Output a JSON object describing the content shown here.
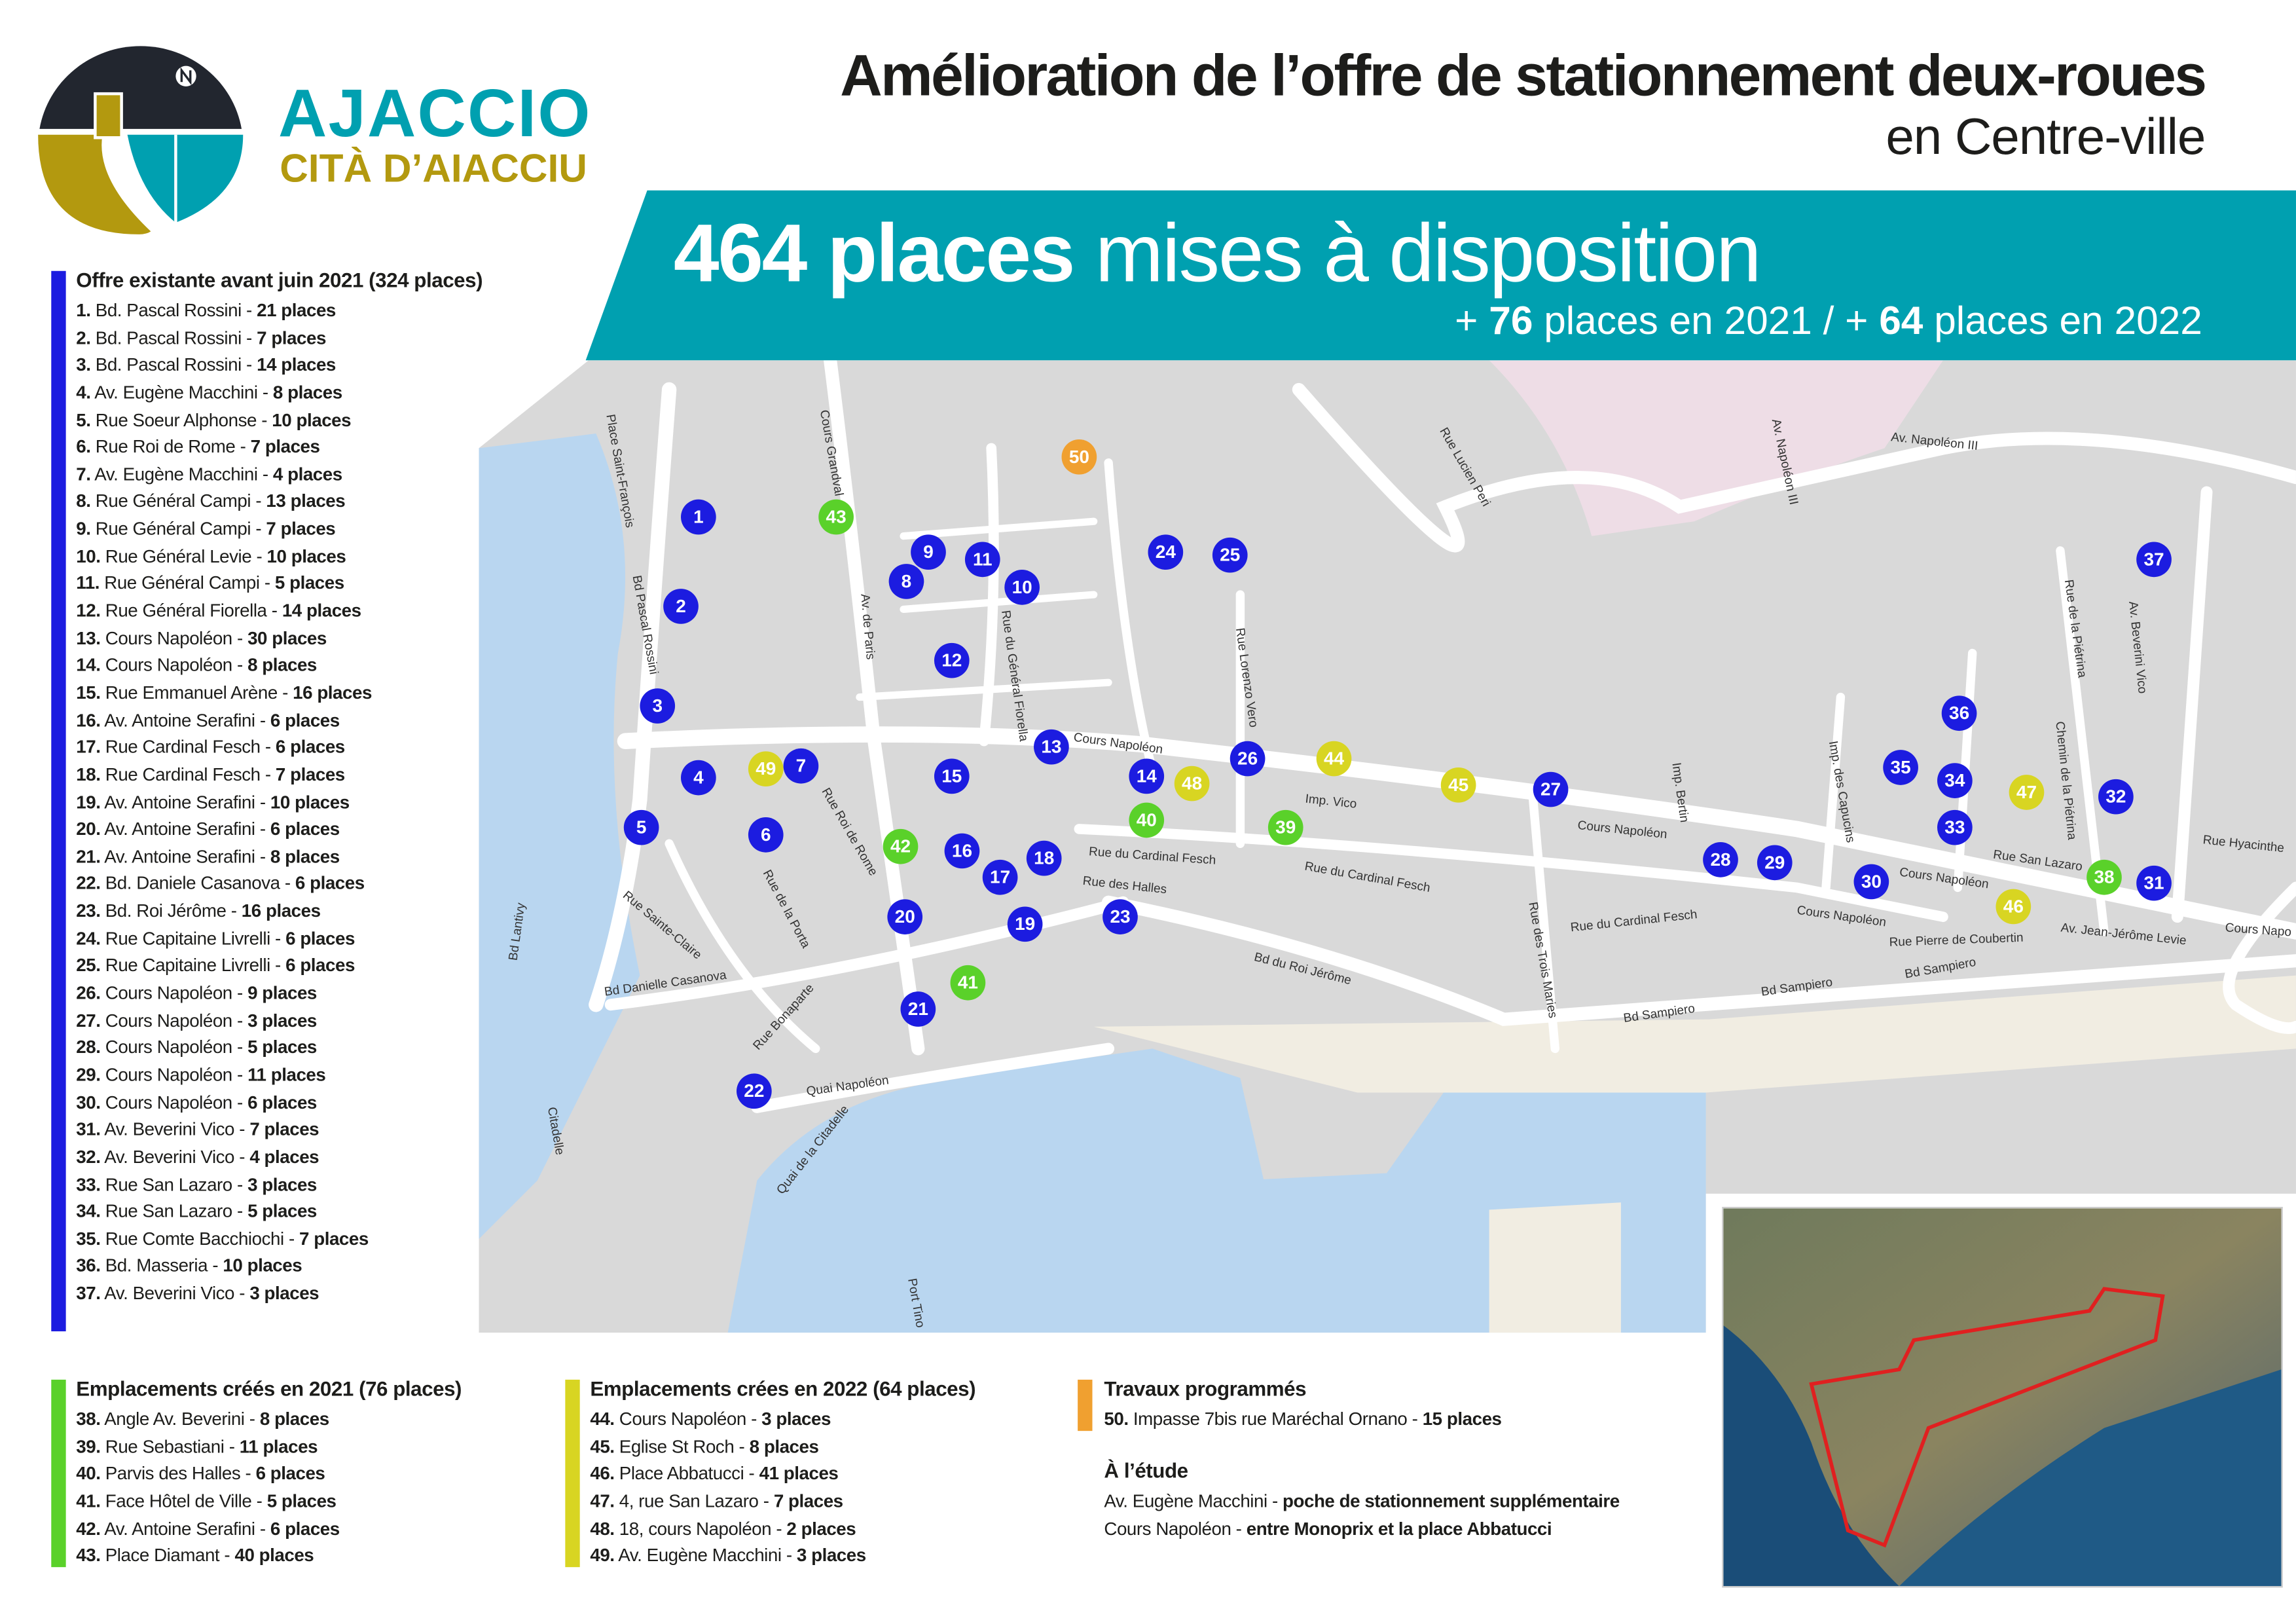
{
  "colors": {
    "teal": "#00a0b0",
    "gold": "#b3990f",
    "navy": "#22262f",
    "existing": "#1c1ce0",
    "created_2021": "#5ad12a",
    "created_2022": "#d8d522",
    "planned": "#f0a030",
    "sea": "#b9d6f0",
    "map_bg": "#d9d9d9",
    "road": "#ffffff"
  },
  "logo": {
    "name": "AJACCIO",
    "subtitle": "CITÀ D’AIACCIU",
    "icon": "ajaccio-coat-of-arms-icon"
  },
  "header": {
    "title_line1": "Amélioration de l’offre de stationnement deux-roues",
    "title_line2": "en Centre-ville"
  },
  "banner": {
    "big_bold": "464 places",
    "big_rest": " mises à disposition",
    "sub_pre1": "+ ",
    "sub_num1": "76",
    "sub_mid": " places en 2021 / + ",
    "sub_num2": "64",
    "sub_post": " places en 2022"
  },
  "existing": {
    "title": "Offre existante avant juin 2021 (324 places)",
    "items": [
      {
        "num": "1.",
        "street": "Bd. Pascal Rossini",
        "places": "21 places"
      },
      {
        "num": "2.",
        "street": "Bd. Pascal Rossini",
        "places": "7 places"
      },
      {
        "num": "3.",
        "street": "Bd. Pascal Rossini",
        "places": "14 places"
      },
      {
        "num": "4.",
        "street": "Av. Eugène Macchini",
        "places": "8 places"
      },
      {
        "num": "5.",
        "street": "Rue Soeur Alphonse",
        "places": "10 places"
      },
      {
        "num": "6.",
        "street": "Rue Roi de Rome",
        "places": "7 places"
      },
      {
        "num": "7.",
        "street": "Av. Eugène Macchini",
        "places": "4 places"
      },
      {
        "num": "8.",
        "street": "Rue Général Campi",
        "places": "13 places"
      },
      {
        "num": "9.",
        "street": "Rue Général Campi",
        "places": "7 places"
      },
      {
        "num": "10.",
        "street": "Rue Général Levie",
        "places": "10 places"
      },
      {
        "num": "11.",
        "street": "Rue Général Campi",
        "places": "5 places"
      },
      {
        "num": "12.",
        "street": "Rue Général Fiorella",
        "places": "14 places"
      },
      {
        "num": "13.",
        "street": "Cours Napoléon",
        "places": "30 places"
      },
      {
        "num": "14.",
        "street": "Cours Napoléon",
        "places": "8 places"
      },
      {
        "num": "15.",
        "street": "Rue Emmanuel Arène",
        "places": "16 places"
      },
      {
        "num": "16.",
        "street": "Av. Antoine Serafini",
        "places": "6 places"
      },
      {
        "num": "17.",
        "street": "Rue Cardinal Fesch",
        "places": "6 places"
      },
      {
        "num": "18.",
        "street": "Rue Cardinal Fesch",
        "places": "7 places"
      },
      {
        "num": "19.",
        "street": "Av. Antoine Serafini",
        "places": "10 places"
      },
      {
        "num": "20.",
        "street": "Av. Antoine Serafini",
        "places": "6 places"
      },
      {
        "num": "21.",
        "street": "Av. Antoine Serafini",
        "places": "8 places"
      },
      {
        "num": "22.",
        "street": "Bd. Daniele Casanova",
        "places": "6 places"
      },
      {
        "num": "23.",
        "street": "Bd. Roi Jérôme",
        "places": "16 places"
      },
      {
        "num": "24.",
        "street": "Rue Capitaine Livrelli",
        "places": "6 places"
      },
      {
        "num": "25.",
        "street": "Rue Capitaine Livrelli",
        "places": "6 places"
      },
      {
        "num": "26.",
        "street": "Cours Napoléon",
        "places": "9 places"
      },
      {
        "num": "27.",
        "street": "Cours Napoléon",
        "places": "3 places"
      },
      {
        "num": "28.",
        "street": "Cours Napoléon",
        "places": "5 places"
      },
      {
        "num": "29.",
        "street": "Cours Napoléon",
        "places": "11 places"
      },
      {
        "num": "30.",
        "street": "Cours Napoléon",
        "places": "6 places"
      },
      {
        "num": "31.",
        "street": "Av. Beverini Vico",
        "places": "7 places"
      },
      {
        "num": "32.",
        "street": "Av. Beverini Vico",
        "places": "4 places"
      },
      {
        "num": "33.",
        "street": "Rue San Lazaro",
        "places": "3 places"
      },
      {
        "num": "34.",
        "street": "Rue San Lazaro",
        "places": "5 places"
      },
      {
        "num": "35.",
        "street": "Rue Comte Bacchiochi",
        "places": "7 places"
      },
      {
        "num": "36.",
        "street": "Bd. Masseria",
        "places": "10 places"
      },
      {
        "num": "37.",
        "street": "Av. Beverini Vico",
        "places": "3 places"
      }
    ]
  },
  "created_2021": {
    "title": "Emplacements créés en 2021 (76 places)",
    "items": [
      {
        "num": "38.",
        "street": "Angle Av. Beverini",
        "places": "8 places"
      },
      {
        "num": "39.",
        "street": "Rue Sebastiani",
        "places": "11 places"
      },
      {
        "num": "40.",
        "street": "Parvis des Halles",
        "places": "6 places"
      },
      {
        "num": "41.",
        "street": "Face Hôtel de Ville",
        "places": "5 places"
      },
      {
        "num": "42.",
        "street": "Av. Antoine Serafini",
        "places": "6 places"
      },
      {
        "num": "43.",
        "street": "Place Diamant",
        "places": "40 places"
      }
    ]
  },
  "created_2022": {
    "title": "Emplacements crées en 2022 (64 places)",
    "items": [
      {
        "num": "44.",
        "street": "Cours Napoléon",
        "places": "3 places"
      },
      {
        "num": "45.",
        "street": "Eglise St Roch",
        "places": "8 places"
      },
      {
        "num": "46.",
        "street": "Place Abbatucci",
        "places": "41 places"
      },
      {
        "num": "47.",
        "street": "4, rue San Lazaro",
        "places": "7 places"
      },
      {
        "num": "48.",
        "street": "18, cours Napoléon",
        "places": "2 places"
      },
      {
        "num": "49.",
        "street": "Av. Eugène Macchini",
        "places": "3 places"
      }
    ]
  },
  "planned": {
    "title": "Travaux programmés",
    "items": [
      {
        "num": "50.",
        "street": "Impasse 7bis rue Maréchal Ornano",
        "places": "15 places"
      }
    ]
  },
  "study": {
    "title": "À l’étude",
    "items": [
      {
        "num": "",
        "street": "Av. Eugène Macchini",
        "places": "poche de stationnement supplémentaire"
      },
      {
        "num": "",
        "street": "Cours Napoléon",
        "places": "entre Monoprix et la place Abbatucci"
      }
    ]
  },
  "map": {
    "markers": [
      {
        "n": "1",
        "cat": "existing"
      },
      {
        "n": "2",
        "cat": "existing"
      },
      {
        "n": "3",
        "cat": "existing"
      },
      {
        "n": "4",
        "cat": "existing"
      },
      {
        "n": "5",
        "cat": "existing"
      },
      {
        "n": "6",
        "cat": "existing"
      },
      {
        "n": "7",
        "cat": "existing"
      },
      {
        "n": "8",
        "cat": "existing"
      },
      {
        "n": "9",
        "cat": "existing"
      },
      {
        "n": "10",
        "cat": "existing"
      },
      {
        "n": "11",
        "cat": "existing"
      },
      {
        "n": "12",
        "cat": "existing"
      },
      {
        "n": "13",
        "cat": "existing"
      },
      {
        "n": "14",
        "cat": "existing"
      },
      {
        "n": "15",
        "cat": "existing"
      },
      {
        "n": "16",
        "cat": "existing"
      },
      {
        "n": "17",
        "cat": "existing"
      },
      {
        "n": "18",
        "cat": "existing"
      },
      {
        "n": "19",
        "cat": "existing"
      },
      {
        "n": "20",
        "cat": "existing"
      },
      {
        "n": "21",
        "cat": "existing"
      },
      {
        "n": "22",
        "cat": "existing"
      },
      {
        "n": "23",
        "cat": "existing"
      },
      {
        "n": "24",
        "cat": "existing"
      },
      {
        "n": "25",
        "cat": "existing"
      },
      {
        "n": "26",
        "cat": "existing"
      },
      {
        "n": "27",
        "cat": "existing"
      },
      {
        "n": "28",
        "cat": "existing"
      },
      {
        "n": "29",
        "cat": "existing"
      },
      {
        "n": "30",
        "cat": "existing"
      },
      {
        "n": "31",
        "cat": "existing"
      },
      {
        "n": "32",
        "cat": "existing"
      },
      {
        "n": "33",
        "cat": "existing"
      },
      {
        "n": "34",
        "cat": "existing"
      },
      {
        "n": "35",
        "cat": "existing"
      },
      {
        "n": "36",
        "cat": "existing"
      },
      {
        "n": "37",
        "cat": "existing"
      },
      {
        "n": "38",
        "cat": "created_2021"
      },
      {
        "n": "39",
        "cat": "created_2021"
      },
      {
        "n": "40",
        "cat": "created_2021"
      },
      {
        "n": "41",
        "cat": "created_2021"
      },
      {
        "n": "42",
        "cat": "created_2021"
      },
      {
        "n": "43",
        "cat": "created_2021"
      },
      {
        "n": "44",
        "cat": "created_2022"
      },
      {
        "n": "45",
        "cat": "created_2022"
      },
      {
        "n": "46",
        "cat": "created_2022"
      },
      {
        "n": "47",
        "cat": "created_2022"
      },
      {
        "n": "48",
        "cat": "created_2022"
      },
      {
        "n": "49",
        "cat": "created_2022"
      },
      {
        "n": "50",
        "cat": "planned"
      }
    ],
    "street_labels": [
      "Cours Napoléon",
      "Cours Napoléon",
      "Cours Napoléon",
      "Cours Napoléon",
      "Cours Grandval",
      "Bd Pascal Rossini",
      "Av. de Paris",
      "Rue du Général Fiorella",
      "Rue du Cardinal Fesch",
      "Rue du Cardinal Fesch",
      "Rue du Cardinal Fesch",
      "Bd du Roi Jérôme",
      "Bd Sampiero",
      "Bd Sampiero",
      "Bd Sampiero",
      "Quai Napoléon",
      "Quai de la Citadelle",
      "Bd Danielle Casanova",
      "Rue Sainte-Claire",
      "Rue Lorenzo Vero",
      "Av. Napoléon III",
      "Av. Napoléon III",
      "Av. Beverini Vico",
      "Rue San Lazaro",
      "Rue Pierre de Coubertin",
      "Av. Jean-Jérôme Levie",
      "Imp. Vico",
      "Rue des Halles",
      "Rue des Trois Maries",
      "Bd Lantivy",
      "Rue Lucien Peri",
      "Rue de la Piétrina",
      "Chemin de la Piétrina",
      "Rue Bonaparte",
      "Rue Roi de Rome",
      "Rue de la Porta",
      "Place Saint-François",
      "Citadelle",
      "Port Tino",
      "Rue Hyacinthe",
      "Imp. Bertin",
      "Imp. des Capucins",
      "Cours Napo"
    ]
  }
}
